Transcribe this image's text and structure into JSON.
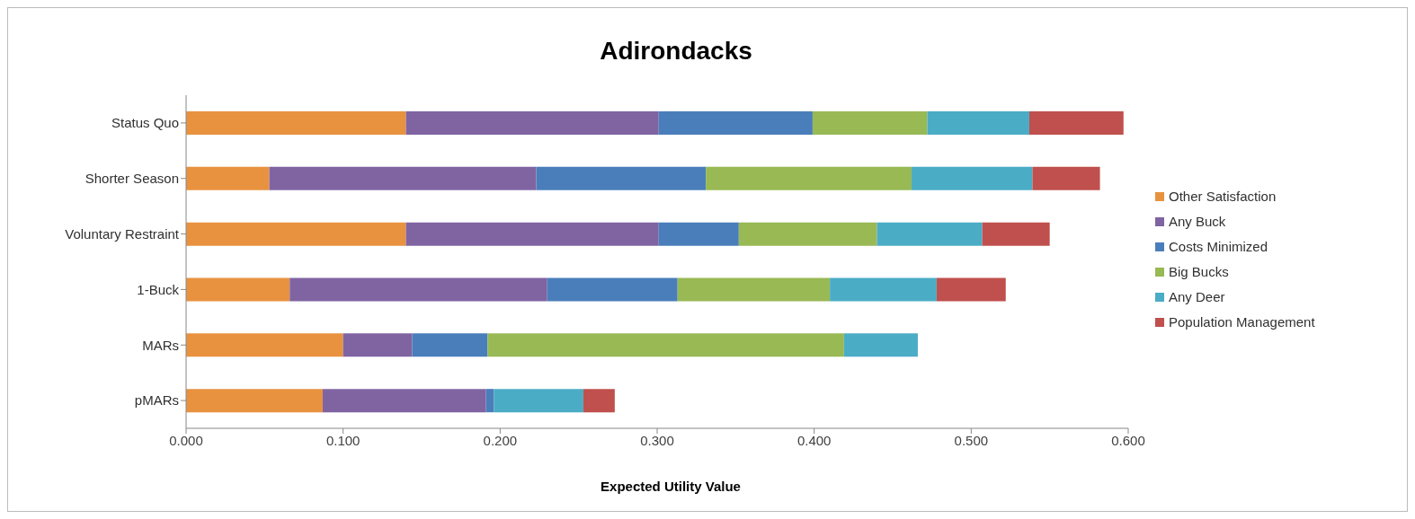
{
  "chart_data": {
    "type": "bar",
    "title": "Adirondacks",
    "xlabel": "Expected Utility Value",
    "orientation": "horizontal",
    "stacked": true,
    "categories": [
      "Status Quo",
      "Shorter Season",
      "Voluntary Restraint",
      "1-Buck",
      "MARs",
      "pMARs"
    ],
    "series": [
      {
        "name": "Other Satisfaction",
        "color": "#e8923f",
        "values": [
          0.14,
          0.053,
          0.14,
          0.066,
          0.1,
          0.087
        ]
      },
      {
        "name": "Any Buck",
        "color": "#8064a2",
        "values": [
          0.161,
          0.17,
          0.161,
          0.164,
          0.044,
          0.104
        ]
      },
      {
        "name": "Costs Minimized",
        "color": "#4a7ebb",
        "values": [
          0.098,
          0.108,
          0.051,
          0.083,
          0.048,
          0.005
        ]
      },
      {
        "name": "Big Bucks",
        "color": "#98b954",
        "values": [
          0.073,
          0.131,
          0.088,
          0.097,
          0.227,
          0
        ]
      },
      {
        "name": "Any Deer",
        "color": "#4bacc6",
        "values": [
          0.065,
          0.077,
          0.067,
          0.068,
          0.047,
          0.057
        ]
      },
      {
        "name": "Population Management",
        "color": "#c0504d",
        "values": [
          0.06,
          0.043,
          0.043,
          0.044,
          0,
          0.02
        ]
      }
    ],
    "xlim": [
      0,
      0.6
    ],
    "xticks": [
      {
        "value": 0,
        "label": "0.000"
      },
      {
        "value": 0.1,
        "label": "0.100"
      },
      {
        "value": 0.2,
        "label": "0.200"
      },
      {
        "value": 0.3,
        "label": "0.300"
      },
      {
        "value": 0.4,
        "label": "0.400"
      },
      {
        "value": 0.5,
        "label": "0.500"
      },
      {
        "value": 0.6,
        "label": "0.600"
      }
    ],
    "legend": "right",
    "grid": false
  }
}
